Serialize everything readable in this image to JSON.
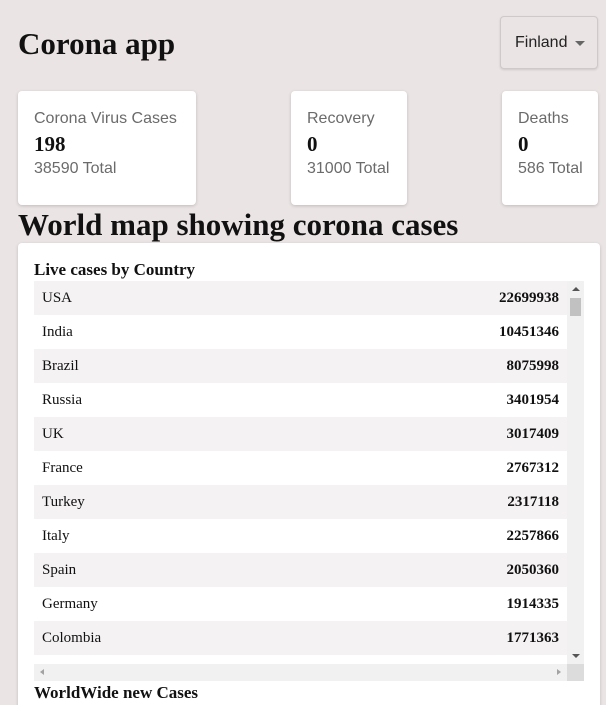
{
  "header": {
    "title": "Corona app",
    "country_select": {
      "selected": "Finland"
    }
  },
  "stats": {
    "cases": {
      "label": "Corona Virus Cases",
      "value": "198",
      "total": "38590 Total"
    },
    "recovery": {
      "label": "Recovery",
      "value": "0",
      "total": "31000 Total"
    },
    "deaths": {
      "label": "Deaths",
      "value": "0",
      "total": "586 Total"
    }
  },
  "map_section": {
    "heading": "World map showing corona cases"
  },
  "live_cases": {
    "heading": "Live cases by Country",
    "rows": [
      {
        "country": "USA",
        "cases": "22699938"
      },
      {
        "country": "India",
        "cases": "10451346"
      },
      {
        "country": "Brazil",
        "cases": "8075998"
      },
      {
        "country": "Russia",
        "cases": "3401954"
      },
      {
        "country": "UK",
        "cases": "3017409"
      },
      {
        "country": "France",
        "cases": "2767312"
      },
      {
        "country": "Turkey",
        "cases": "2317118"
      },
      {
        "country": "Italy",
        "cases": "2257866"
      },
      {
        "country": "Spain",
        "cases": "2050360"
      },
      {
        "country": "Germany",
        "cases": "1914335"
      },
      {
        "country": "Colombia",
        "cases": "1771363"
      }
    ]
  },
  "worldwide": {
    "heading": "WorldWide new Cases"
  }
}
